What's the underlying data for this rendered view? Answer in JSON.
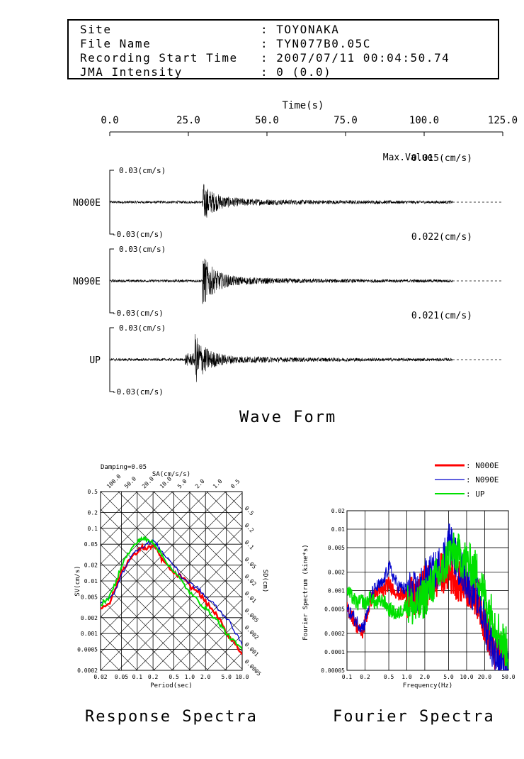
{
  "header": {
    "rows": [
      {
        "label": "Site",
        "sep": ":",
        "value": "TOYONAKA"
      },
      {
        "label": "File Name",
        "sep": ":",
        "value": "TYN077B0.05C"
      },
      {
        "label": "Recording Start Time",
        "sep": ":",
        "value": "2007/07/11 00:04:50.74"
      },
      {
        "label": "JMA Intensity",
        "sep": ":",
        "value": "0 (0.0)"
      }
    ]
  },
  "wave": {
    "time_axis_label": "Time(s)",
    "time_ticks": [
      "0.0",
      "25.0",
      "50.0",
      "75.0",
      "100.0",
      "125.0"
    ],
    "max_value_label": "Max.Value",
    "title": "Wave Form",
    "channels": [
      {
        "name": "N000E",
        "top_label": "0.03(cm/s)",
        "bottom_label": "-0.03(cm/s)",
        "max": "0.015(cm/s)"
      },
      {
        "name": "N090E",
        "top_label": "0.03(cm/s)",
        "bottom_label": "-0.03(cm/s)",
        "max": "0.022(cm/s)"
      },
      {
        "name": "UP",
        "top_label": "0.03(cm/s)",
        "bottom_label": "-0.03(cm/s)",
        "max": "0.021(cm/s)"
      }
    ]
  },
  "response": {
    "title": "Response Spectra",
    "damping": "Damping=0.05",
    "sa_label": "SA(cm/s/s)",
    "sd_label": "SD(cm)",
    "sv_label": "SV(cm/s)",
    "xlabel": "Period(sec)",
    "yticks": [
      "0.5",
      "0.2",
      "0.1",
      "0.05",
      "0.02",
      "0.01",
      "0.005",
      "0.002",
      "0.001",
      "0.0005",
      "0.0002"
    ],
    "xticks": [
      "0.02",
      "0.05",
      "0.1",
      "0.2",
      "0.5",
      "1.0",
      "2.0",
      "5.0",
      "10.0"
    ],
    "sa_ticks": [
      "100.0",
      "50.0",
      "20.0",
      "10.0",
      "5.0",
      "2.0",
      "1.0",
      "0.5"
    ],
    "sd_ticks": [
      "0.5",
      "0.2",
      "0.1",
      "0.05",
      "0.02",
      "0.01",
      "0.005",
      "0.002",
      "0.001",
      "0.0005"
    ]
  },
  "fourier": {
    "title": "Fourier Spectra",
    "ylabel": "Fourier Spectrum (kine*s)",
    "xlabel": "Frequency(Hz)",
    "yticks": [
      "0.02",
      "0.01",
      "0.005",
      "0.002",
      "0.001",
      "0.0005",
      "0.0002",
      "0.0001",
      "0.00005"
    ],
    "xticks": [
      "0.1",
      "0.2",
      "0.5",
      "1.0",
      "2.0",
      "5.0",
      "10.0",
      "20.0",
      "50.0"
    ]
  },
  "legend": [
    {
      "label": ": N000E",
      "color": "#ff0000"
    },
    {
      "label": ": N090E",
      "color": "#0000cc"
    },
    {
      "label": ": UP",
      "color": "#00e000"
    }
  ],
  "chart_data": [
    {
      "type": "line",
      "title": "Wave Form",
      "xlabel": "Time(s)",
      "xlim": [
        0,
        125
      ],
      "ylim": [
        -0.03,
        0.03
      ],
      "series": [
        {
          "name": "N000E",
          "peak": 0.015,
          "onset_s": 29.5,
          "end_s": 109
        },
        {
          "name": "N090E",
          "peak": 0.022,
          "onset_s": 29.5,
          "end_s": 109
        },
        {
          "name": "UP",
          "peak": 0.021,
          "onset_s": 27,
          "end_s": 109
        }
      ]
    },
    {
      "type": "line",
      "title": "Response Spectra",
      "xlabel": "Period(sec)",
      "ylabel": "SV(cm/s)",
      "xscale": "log",
      "yscale": "log",
      "xlim": [
        0.02,
        10
      ],
      "ylim": [
        0.0002,
        0.5
      ],
      "series": [
        {
          "name": "N000E",
          "color": "#ff0000",
          "x": [
            0.02,
            0.03,
            0.04,
            0.05,
            0.07,
            0.1,
            0.12,
            0.15,
            0.2,
            0.25,
            0.3,
            0.5,
            0.7,
            1.0,
            1.5,
            2,
            3,
            4,
            5,
            7,
            10
          ],
          "y": [
            0.003,
            0.004,
            0.008,
            0.015,
            0.025,
            0.035,
            0.045,
            0.04,
            0.048,
            0.035,
            0.025,
            0.014,
            0.012,
            0.008,
            0.006,
            0.004,
            0.0025,
            0.0016,
            0.001,
            0.0007,
            0.0004
          ]
        },
        {
          "name": "N090E",
          "color": "#0000cc",
          "x": [
            0.02,
            0.03,
            0.04,
            0.05,
            0.07,
            0.1,
            0.15,
            0.2,
            0.25,
            0.3,
            0.5,
            0.7,
            1.0,
            1.5,
            2,
            3,
            4,
            5,
            7,
            10
          ],
          "y": [
            0.004,
            0.0045,
            0.007,
            0.013,
            0.025,
            0.04,
            0.05,
            0.06,
            0.045,
            0.035,
            0.02,
            0.012,
            0.009,
            0.007,
            0.005,
            0.0035,
            0.0025,
            0.002,
            0.0012,
            0.0006
          ]
        },
        {
          "name": "UP",
          "color": "#00e000",
          "x": [
            0.02,
            0.03,
            0.04,
            0.05,
            0.07,
            0.1,
            0.12,
            0.15,
            0.2,
            0.25,
            0.3,
            0.5,
            0.7,
            1.0,
            1.5,
            2,
            3,
            4,
            5,
            7,
            10
          ],
          "y": [
            0.0035,
            0.005,
            0.01,
            0.02,
            0.035,
            0.055,
            0.065,
            0.06,
            0.055,
            0.04,
            0.03,
            0.015,
            0.01,
            0.006,
            0.004,
            0.003,
            0.002,
            0.0014,
            0.001,
            0.0007,
            0.0005
          ]
        }
      ]
    },
    {
      "type": "line",
      "title": "Fourier Spectra",
      "xlabel": "Frequency(Hz)",
      "ylabel": "Fourier Spectrum (kine*s)",
      "xscale": "log",
      "yscale": "log",
      "xlim": [
        0.1,
        50
      ],
      "ylim": [
        5e-05,
        0.02
      ],
      "series": [
        {
          "name": "N000E",
          "color": "#ff0000",
          "x": [
            0.1,
            0.12,
            0.15,
            0.18,
            0.2,
            0.25,
            0.3,
            0.4,
            0.5,
            0.7,
            1.0,
            1.5,
            2,
            3,
            4,
            5,
            7,
            10,
            15,
            20,
            30,
            40,
            50
          ],
          "y": [
            0.0005,
            0.0004,
            0.00025,
            0.0002,
            0.0003,
            0.0007,
            0.0009,
            0.001,
            0.0013,
            0.0009,
            0.0008,
            0.0007,
            0.0012,
            0.0015,
            0.002,
            0.002,
            0.0015,
            0.0012,
            0.0008,
            0.0003,
            0.0001,
            8e-05,
            6e-05
          ]
        },
        {
          "name": "N090E",
          "color": "#0000cc",
          "x": [
            0.1,
            0.12,
            0.15,
            0.18,
            0.2,
            0.25,
            0.3,
            0.4,
            0.5,
            0.7,
            1.0,
            1.5,
            2,
            3,
            4,
            5,
            7,
            10,
            15,
            20,
            30,
            40,
            50
          ],
          "y": [
            0.0005,
            0.0004,
            0.0003,
            0.00025,
            0.0003,
            0.0008,
            0.0011,
            0.0013,
            0.0025,
            0.0012,
            0.001,
            0.0009,
            0.0015,
            0.002,
            0.003,
            0.007,
            0.003,
            0.0015,
            0.0008,
            0.0003,
            9e-05,
            7e-05,
            5e-05
          ]
        },
        {
          "name": "UP",
          "color": "#00e000",
          "x": [
            0.1,
            0.12,
            0.15,
            0.18,
            0.2,
            0.25,
            0.3,
            0.4,
            0.5,
            0.7,
            1.0,
            1.5,
            2,
            3,
            4,
            5,
            7,
            10,
            15,
            20,
            30,
            40,
            50
          ],
          "y": [
            0.001,
            0.0008,
            0.0006,
            0.0007,
            0.0006,
            0.0008,
            0.0006,
            0.0007,
            0.0005,
            0.0004,
            0.0006,
            0.0005,
            0.0008,
            0.0015,
            0.002,
            0.004,
            0.004,
            0.003,
            0.002,
            0.0008,
            0.0003,
            0.00015,
            0.0001
          ]
        }
      ]
    }
  ]
}
